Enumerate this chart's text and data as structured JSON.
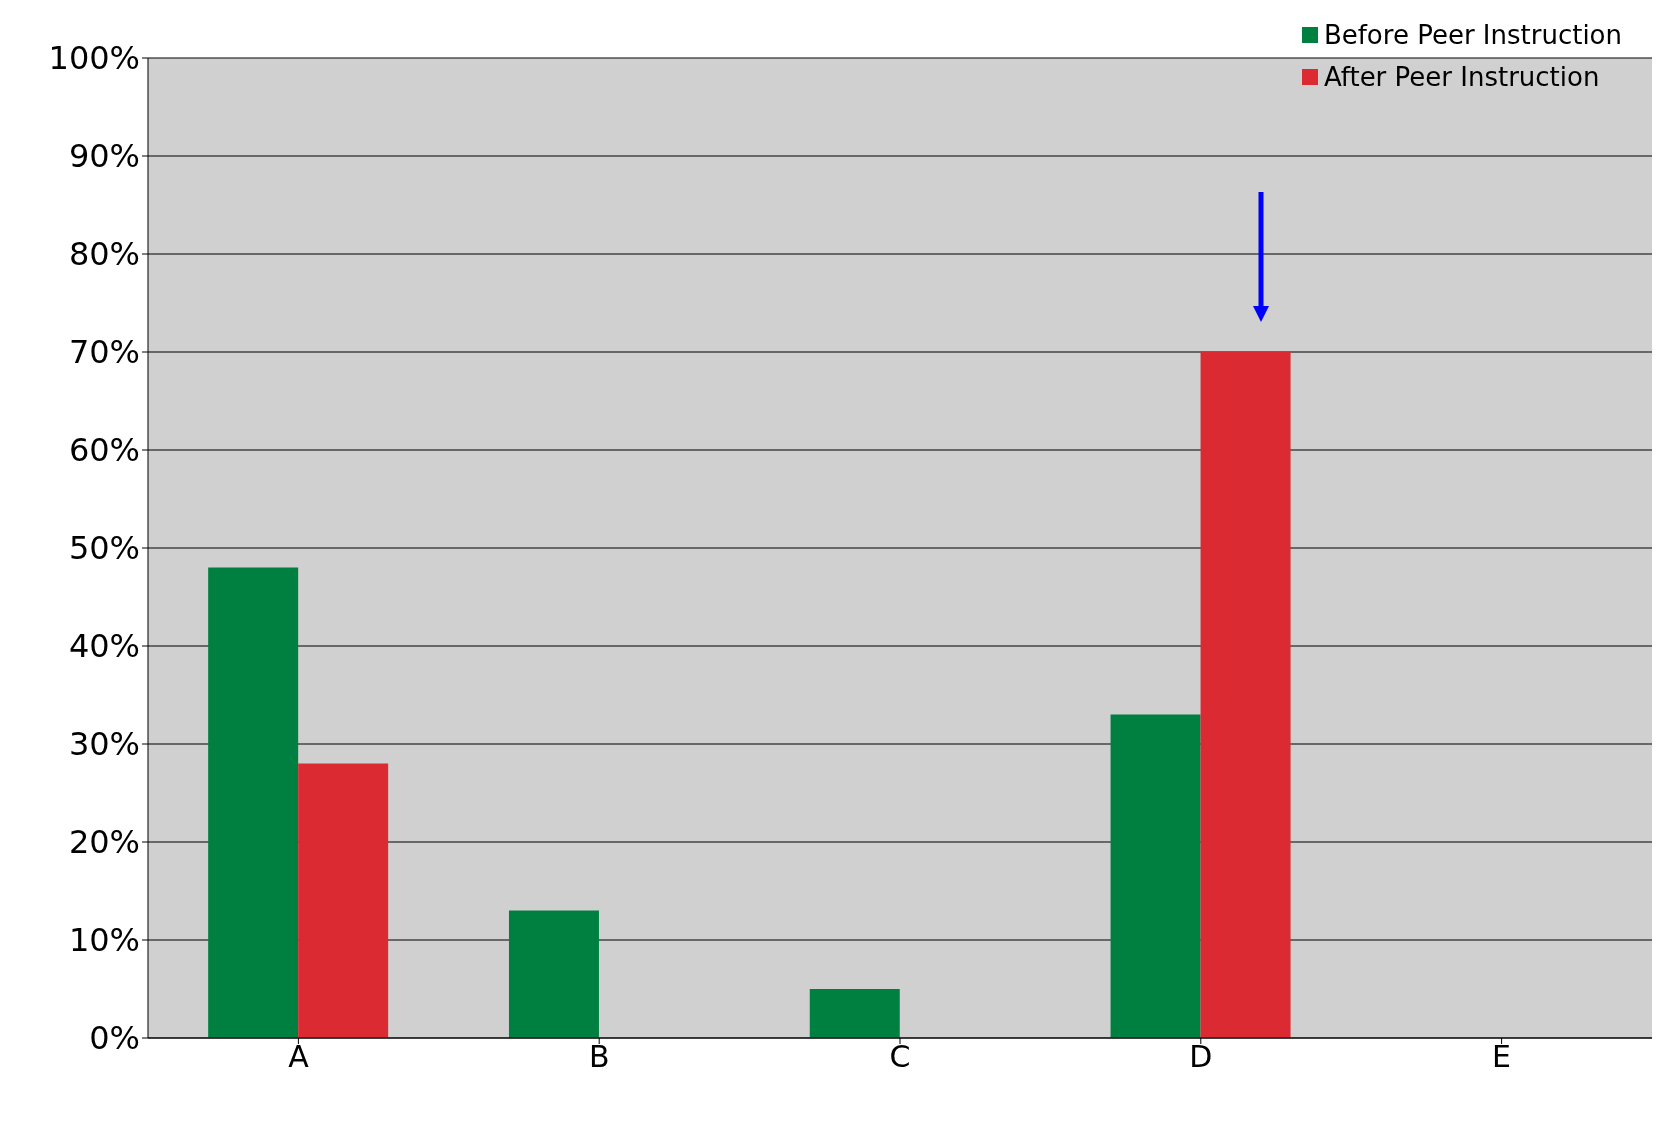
{
  "chart_data": {
    "type": "bar",
    "categories": [
      "A",
      "B",
      "C",
      "D",
      "E"
    ],
    "series": [
      {
        "name": "Before Peer Instruction",
        "color": "#008040",
        "values": [
          48,
          13,
          5,
          33,
          0
        ]
      },
      {
        "name": "After Peer Instruction",
        "color": "#dc2a32",
        "values": [
          28,
          0,
          0,
          70,
          0
        ]
      }
    ],
    "ylim": [
      0,
      100
    ],
    "yticks": [
      {
        "value": 0,
        "label": "0%"
      },
      {
        "value": 10,
        "label": "10%"
      },
      {
        "value": 20,
        "label": "20%"
      },
      {
        "value": 30,
        "label": "30%"
      },
      {
        "value": 40,
        "label": "40%"
      },
      {
        "value": 50,
        "label": "50%"
      },
      {
        "value": 60,
        "label": "60%"
      },
      {
        "value": 70,
        "label": "70%"
      },
      {
        "value": 80,
        "label": "80%"
      },
      {
        "value": 90,
        "label": "90%"
      },
      {
        "value": 100,
        "label": "100%"
      }
    ],
    "grid": "y",
    "legend": "top right"
  }
}
